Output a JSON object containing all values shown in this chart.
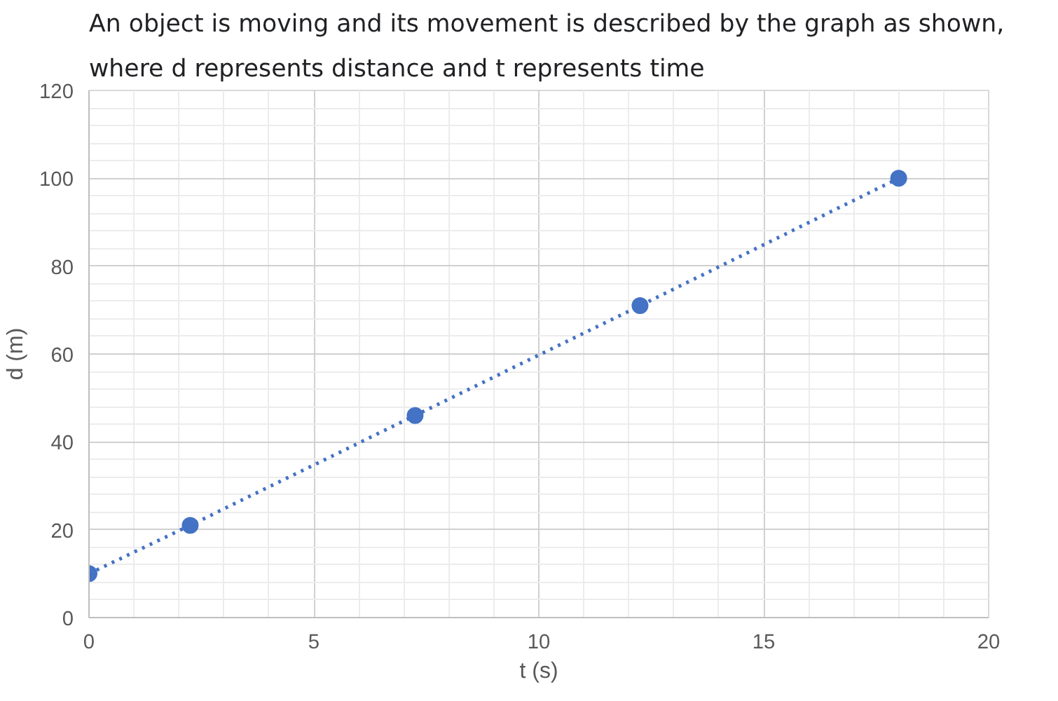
{
  "chart_data": {
    "type": "line",
    "title": "An object is moving and its movement is described by the graph as shown, where d represents distance and t represents time",
    "xlabel": "t (s)",
    "ylabel": "d (m)",
    "x": [
      0,
      2.25,
      7.25,
      12.25,
      18
    ],
    "series": [
      {
        "color": "#4472c4",
        "values": [
          10,
          21,
          46,
          71,
          100
        ]
      }
    ],
    "xlim": [
      0,
      20
    ],
    "xticks": [
      0,
      5,
      10,
      15,
      20
    ],
    "ylim": [
      0,
      120
    ],
    "yticks": [
      0,
      20,
      40,
      60,
      80,
      100,
      120
    ],
    "grid": true,
    "marker": "circle",
    "line_style": "dotted"
  }
}
